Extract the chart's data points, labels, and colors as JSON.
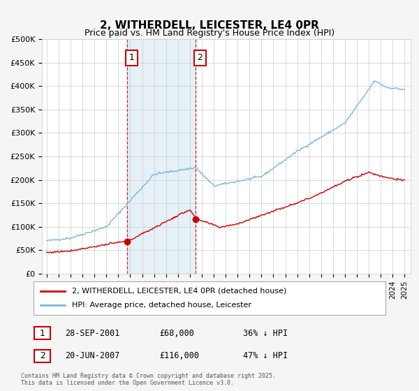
{
  "title": "2, WITHERDELL, LEICESTER, LE4 0PR",
  "subtitle": "Price paid vs. HM Land Registry's House Price Index (HPI)",
  "ylim": [
    0,
    500000
  ],
  "yticks": [
    0,
    50000,
    100000,
    150000,
    200000,
    250000,
    300000,
    350000,
    400000,
    450000,
    500000
  ],
  "ytick_labels": [
    "£0",
    "£50K",
    "£100K",
    "£150K",
    "£200K",
    "£250K",
    "£300K",
    "£350K",
    "£400K",
    "£450K",
    "£500K"
  ],
  "xlim_start": 1994.6,
  "xlim_end": 2025.5,
  "sale1_x": 2001.747,
  "sale1_y": 68000,
  "sale1_label": "1",
  "sale1_date": "28-SEP-2001",
  "sale1_price": "£68,000",
  "sale1_hpi": "36% ↓ HPI",
  "sale2_x": 2007.464,
  "sale2_y": 116000,
  "sale2_label": "2",
  "sale2_date": "20-JUN-2007",
  "sale2_price": "£116,000",
  "sale2_hpi": "47% ↓ HPI",
  "hpi_color": "#7ab8d9",
  "price_color": "#cc0000",
  "shade_color": "#daeaf5",
  "shade_alpha": 0.7,
  "legend_entry1": "2, WITHERDELL, LEICESTER, LE4 0PR (detached house)",
  "legend_entry2": "HPI: Average price, detached house, Leicester",
  "footer": "Contains HM Land Registry data © Crown copyright and database right 2025.\nThis data is licensed under the Open Government Licence v3.0.",
  "bg_color": "#f5f5f5",
  "plot_bg_color": "#ffffff"
}
